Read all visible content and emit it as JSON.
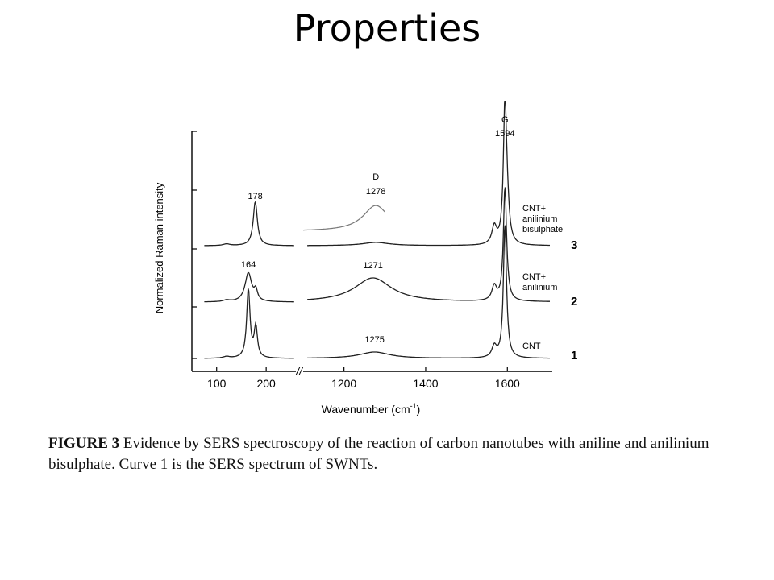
{
  "slide": {
    "title": "Properties"
  },
  "figure": {
    "caption_label": "FIGURE 3",
    "caption_text": "Evidence by SERS spectroscopy of the reaction of carbon nanotubes with aniline and anilinium bisulphate. Curve 1 is the SERS spectrum of SWNTs."
  },
  "chart_data": {
    "type": "line",
    "title": "",
    "xlabel": "Wavenumber (cm",
    "xlabel_sup": "-1",
    "xlabel_close": ")",
    "ylabel": "Normalized Raman intensity",
    "x_ticks_left": [
      100,
      200
    ],
    "x_ticks_right": [
      1200,
      1400,
      1600
    ],
    "xlim_left": [
      50,
      260
    ],
    "xlim_right": [
      1100,
      1710
    ],
    "axis_break": "//",
    "y_ticks": "unlabeled",
    "peak_labels": [
      {
        "text": "G",
        "x": 1594,
        "curve": "3",
        "line": 1
      },
      {
        "text": "1594",
        "x": 1594,
        "curve": "3",
        "line": 2
      },
      {
        "text": "D",
        "x": 1278,
        "curve": "inset",
        "line": 1
      },
      {
        "text": "1278",
        "x": 1278,
        "curve": "inset",
        "line": 2
      },
      {
        "text": "178",
        "x": 178,
        "curve": "3",
        "line": 2
      },
      {
        "text": "164",
        "x": 164,
        "curve": "2",
        "line": 2
      },
      {
        "text": "1271",
        "x": 1271,
        "curve": "2",
        "line": 2
      },
      {
        "text": "1275",
        "x": 1275,
        "curve": "1",
        "line": 2
      }
    ],
    "series": [
      {
        "name": "CNT+ anilinium bisulphate",
        "label_lines": [
          "CNT+",
          "anilinium",
          "bisulphate"
        ],
        "number": "3",
        "rbm": 178,
        "d": 1278,
        "g": 1594
      },
      {
        "name": "CNT+ anilinium",
        "label_lines": [
          "CNT+",
          "anilinium"
        ],
        "number": "2",
        "rbm": 164,
        "d": 1271,
        "g": 1594
      },
      {
        "name": "CNT",
        "label_lines": [
          "CNT"
        ],
        "number": "1",
        "rbm": 164,
        "d": 1275,
        "g": 1594
      }
    ]
  }
}
